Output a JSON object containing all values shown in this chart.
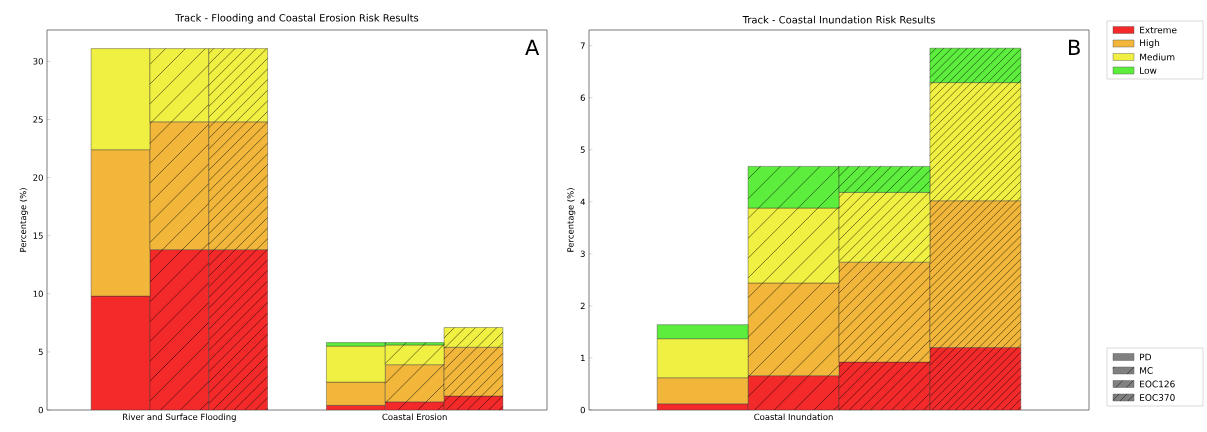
{
  "chart_data": [
    {
      "type": "bar",
      "stacked": true,
      "title": "Track - Flooding and Coastal Erosion Risk Results",
      "ylabel": "Percentage (%)",
      "categories": [
        null,
        "River and Surface Flooding",
        null,
        null,
        null,
        "Coastal Erosion",
        null
      ],
      "ylim": [
        0,
        32.7
      ],
      "yticks": [
        0,
        5,
        10,
        15,
        20,
        25,
        30
      ],
      "annotations": [
        "A"
      ],
      "series": [
        {
          "color": "#f42a2a",
          "values": [
            9.8,
            13.8,
            13.8,
            null,
            0.4,
            0.7,
            1.2
          ]
        },
        {
          "color": "#f2b73a",
          "values": [
            12.6,
            11.0,
            11.0,
            null,
            2.0,
            3.2,
            4.2
          ]
        },
        {
          "color": "#f0f042",
          "values": [
            8.7,
            6.3,
            6.3,
            null,
            3.1,
            1.7,
            1.7
          ]
        },
        {
          "color": "#5ced3d",
          "values": [
            null,
            null,
            null,
            null,
            0.3,
            0.2,
            null
          ]
        }
      ]
    },
    {
      "type": "bar",
      "stacked": true,
      "title": "Track - Coastal Inundation Risk Results",
      "ylabel": "Percentage (%)",
      "categories": [
        null,
        "Coastal Inundation",
        null,
        null
      ],
      "ylim": [
        0,
        7.3
      ],
      "yticks": [
        0,
        1,
        2,
        3,
        4,
        5,
        6,
        7
      ],
      "annotations": [
        "B"
      ],
      "legend": "right",
      "series": [
        {
          "name": "Extreme",
          "color": "#f42a2a",
          "values": [
            0.12,
            0.66,
            0.92,
            1.2
          ]
        },
        {
          "name": "High",
          "color": "#f2b73a",
          "values": [
            0.5,
            1.78,
            1.92,
            2.82
          ]
        },
        {
          "name": "Medium",
          "color": "#f0f042",
          "values": [
            0.75,
            1.44,
            1.34,
            2.27
          ]
        },
        {
          "name": "Low",
          "color": "#5ced3d",
          "values": [
            0.27,
            0.8,
            0.5,
            0.66
          ]
        },
        {
          "name": "PD",
          "color": "#808080",
          "values": [
            null,
            null,
            null,
            null
          ]
        },
        {
          "name": "MC",
          "color": "#808080",
          "values": [
            null,
            null,
            null,
            null
          ]
        },
        {
          "name": "EOC126",
          "color": "#808080",
          "values": [
            null,
            null,
            null,
            null
          ]
        },
        {
          "name": "EOC370",
          "color": "#808080",
          "values": [
            null,
            null,
            null,
            null
          ]
        }
      ]
    }
  ]
}
